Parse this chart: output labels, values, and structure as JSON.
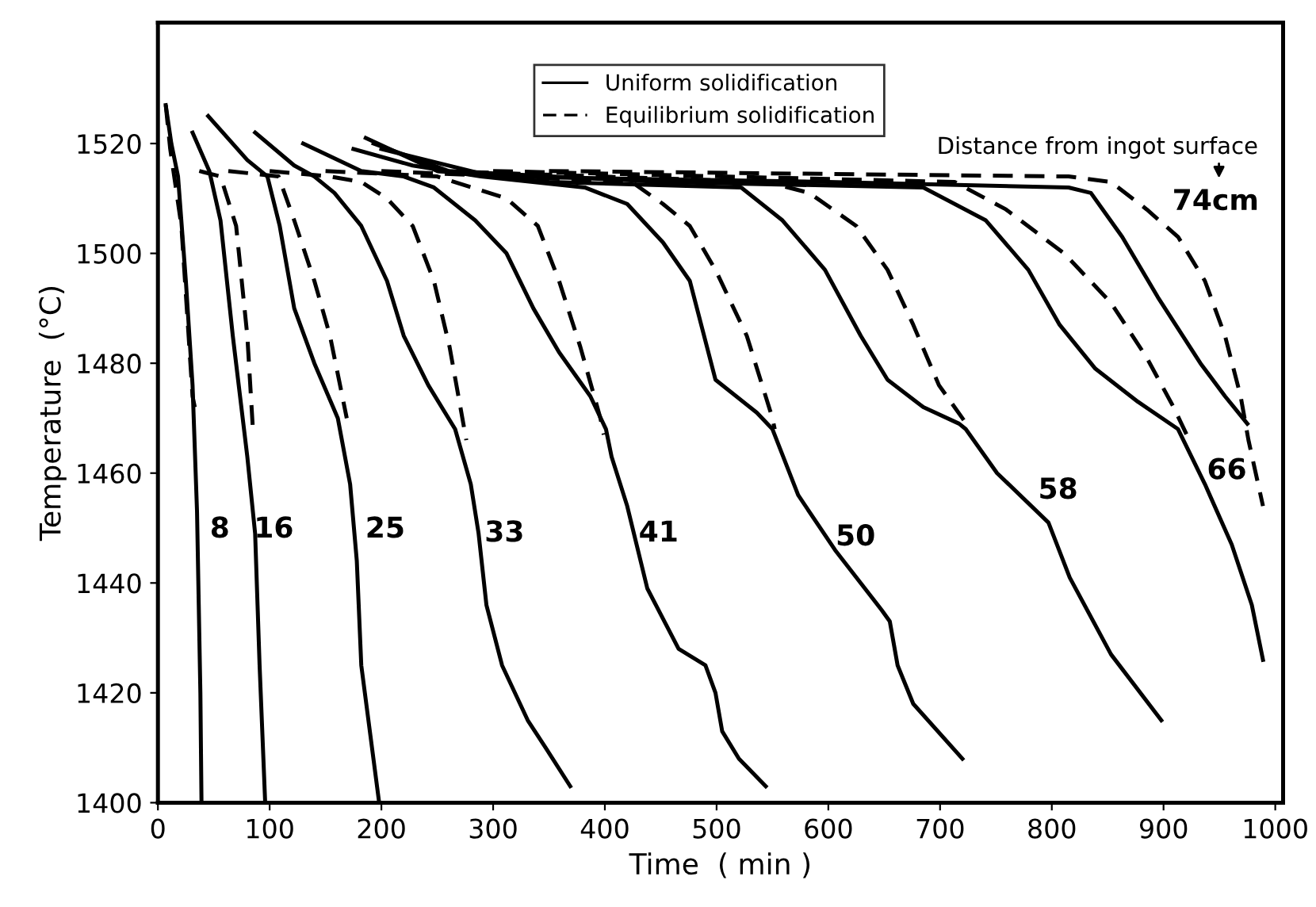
{
  "chart_data": {
    "type": "line",
    "xlabel": "Time  ( min )",
    "ylabel": "Temperature  (°C)",
    "xlim": [
      0,
      1007
    ],
    "ylim": [
      1400,
      1542
    ],
    "xticks": [
      0,
      100,
      200,
      300,
      400,
      500,
      600,
      700,
      800,
      900,
      1000
    ],
    "yticks": [
      1400,
      1420,
      1440,
      1460,
      1480,
      1500,
      1520
    ],
    "grid": false,
    "legend": "top",
    "marker": "none",
    "series": [
      {
        "name": "Uniform solidification",
        "color": "#000000",
        "line_style": "solid",
        "x": [
          7,
          12,
          18,
          25,
          31,
          35,
          38,
          39
        ],
        "values": [
          1527,
          1520,
          1514,
          1495,
          1476,
          1453,
          1420,
          1400
        ]
      },
      {
        "color": "#000000",
        "line_style": "solid",
        "x": [
          31,
          46,
          56,
          67,
          80,
          87,
          91,
          96
        ],
        "values": [
          1522,
          1515,
          1506,
          1485,
          1463,
          1449,
          1425,
          1400
        ]
      },
      {
        "color": "#000000",
        "line_style": "solid",
        "x": [
          45,
          80,
          98,
          109,
          122,
          140,
          161,
          172,
          178,
          182,
          198
        ],
        "values": [
          1525,
          1517,
          1514,
          1505,
          1490,
          1480,
          1470,
          1458,
          1444,
          1425,
          1400
        ]
      },
      {
        "color": "#000000",
        "line_style": "solid",
        "x": [
          87,
          122,
          140,
          158,
          182,
          205,
          220,
          242,
          266,
          280,
          287,
          294,
          308,
          331,
          347,
          369
        ],
        "values": [
          1522,
          1516,
          1514,
          1511,
          1505,
          1495,
          1485,
          1476,
          1468,
          1458,
          1449,
          1436,
          1425,
          1415,
          1410,
          1403
        ]
      },
      {
        "color": "#000000",
        "line_style": "solid",
        "x": [
          130,
          182,
          220,
          247,
          284,
          312,
          336,
          359,
          387,
          401,
          406,
          420,
          438,
          466,
          490,
          499,
          505,
          520,
          544
        ],
        "values": [
          1520,
          1515,
          1514,
          1512,
          1506,
          1500,
          1490,
          1482,
          1474,
          1468,
          1463,
          1454,
          1439,
          1428,
          1425,
          1420,
          1413,
          1408,
          1403
        ]
      },
      {
        "color": "#000000",
        "line_style": "solid",
        "x": [
          175,
          228,
          289,
          382,
          420,
          452,
          476,
          499,
          536,
          550,
          573,
          606,
          648,
          655,
          662,
          676,
          720
        ],
        "values": [
          1519,
          1516,
          1514,
          1512,
          1509,
          1502,
          1495,
          1477,
          1471,
          1468,
          1456,
          1446,
          1435,
          1433,
          1425,
          1418,
          1408
        ]
      },
      {
        "color": "#000000",
        "line_style": "solid",
        "x": [
          186,
          250,
          350,
          522,
          559,
          597,
          629,
          653,
          685,
          717,
          723,
          751,
          797,
          816,
          853,
          898
        ],
        "values": [
          1521,
          1515,
          1513,
          1512,
          1506,
          1497,
          1485,
          1477,
          1472,
          1469,
          1468,
          1460,
          1451,
          1441,
          1427,
          1415
        ]
      },
      {
        "color": "#000000",
        "line_style": "solid",
        "x": [
          193,
          260,
          450,
          685,
          741,
          779,
          807,
          839,
          877,
          913,
          937,
          961,
          979,
          989
        ],
        "values": [
          1520,
          1515,
          1513,
          1512,
          1506,
          1497,
          1487,
          1479,
          1473,
          1468,
          1458,
          1447,
          1436,
          1426
        ]
      },
      {
        "color": "#000000",
        "line_style": "solid",
        "x": [
          200,
          300,
          600,
          815,
          835,
          863,
          895,
          933,
          955,
          975
        ],
        "values": [
          1519,
          1514,
          1513,
          1512,
          1511,
          1503,
          1492,
          1480,
          1474,
          1469
        ]
      },
      {
        "name": "Equilibrium solidification",
        "color": "#000000",
        "line_style": "dashed",
        "x": [
          7,
          11,
          21,
          31,
          33
        ],
        "values": [
          1527,
          1519,
          1505,
          1474,
          1472
        ]
      },
      {
        "color": "#000000",
        "line_style": "dashed",
        "x": [
          37,
          56,
          70,
          80,
          85
        ],
        "values": [
          1515,
          1514,
          1505,
          1485,
          1468
        ]
      },
      {
        "color": "#000000",
        "line_style": "dashed",
        "x": [
          63,
          108,
          122,
          140,
          154,
          169
        ],
        "values": [
          1515,
          1514,
          1506,
          1495,
          1485,
          1470
        ]
      },
      {
        "color": "#000000",
        "line_style": "dashed",
        "x": [
          100,
          154,
          182,
          205,
          228,
          247,
          261,
          276
        ],
        "values": [
          1515,
          1514,
          1513,
          1510,
          1505,
          1495,
          1483,
          1466
        ]
      },
      {
        "color": "#000000",
        "line_style": "dashed",
        "x": [
          150,
          250,
          312,
          340,
          359,
          378,
          396,
          399
        ],
        "values": [
          1515,
          1514,
          1510,
          1505,
          1495,
          1483,
          1470,
          1467
        ]
      },
      {
        "color": "#000000",
        "line_style": "dashed",
        "x": [
          200,
          424,
          452,
          476,
          499,
          527,
          550,
          552
        ],
        "values": [
          1515,
          1513,
          1509,
          1505,
          1497,
          1485,
          1470,
          1468
        ]
      },
      {
        "color": "#000000",
        "line_style": "dashed",
        "x": [
          250,
          545,
          583,
          625,
          653,
          676,
          699,
          727
        ],
        "values": [
          1515,
          1513,
          1511,
          1505,
          1497,
          1487,
          1476,
          1468
        ]
      },
      {
        "color": "#000000",
        "line_style": "dashed",
        "x": [
          300,
          713,
          759,
          811,
          853,
          885,
          909,
          923
        ],
        "values": [
          1515,
          1513,
          1508,
          1500,
          1491,
          1481,
          1472,
          1466
        ]
      },
      {
        "color": "#000000",
        "line_style": "dashed",
        "x": [
          350,
          815,
          853,
          885,
          913,
          937,
          955,
          969,
          976,
          989
        ],
        "values": [
          1515,
          1514,
          1513,
          1508,
          1503,
          1495,
          1485,
          1474,
          1466,
          1454
        ]
      }
    ],
    "annotations": [
      "8",
      "16",
      "25",
      "33",
      "41",
      "50",
      "58",
      "66",
      "74cm",
      "Distance from ingot surface"
    ]
  }
}
